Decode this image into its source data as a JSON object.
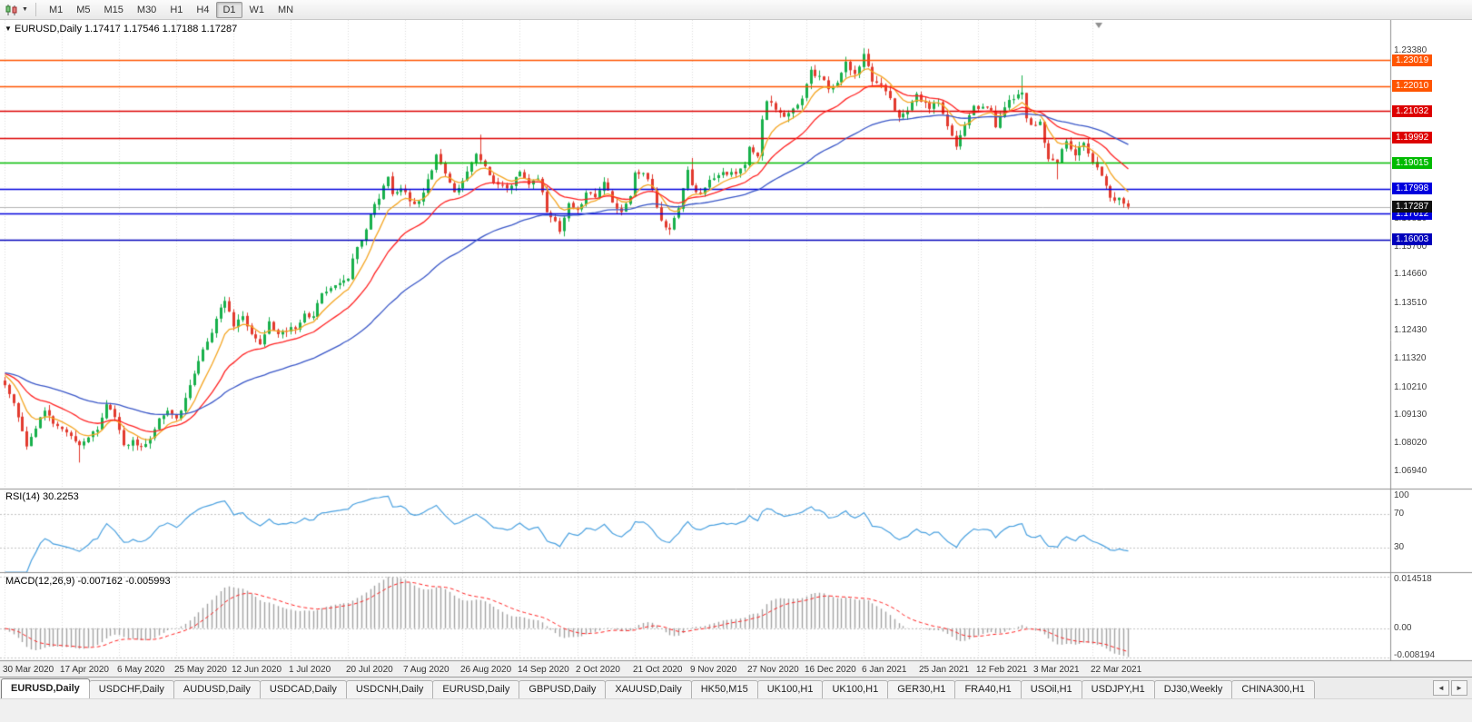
{
  "toolbar": {
    "dropdown_glyph": "▼",
    "timeframes": [
      {
        "label": "M1",
        "active": false
      },
      {
        "label": "M5",
        "active": false
      },
      {
        "label": "M15",
        "active": false
      },
      {
        "label": "M30",
        "active": false
      },
      {
        "label": "H1",
        "active": false
      },
      {
        "label": "H4",
        "active": false
      },
      {
        "label": "D1",
        "active": true
      },
      {
        "label": "W1",
        "active": false
      },
      {
        "label": "MN",
        "active": false
      }
    ]
  },
  "chart": {
    "title": "EURUSD,Daily 1.17417 1.17546 1.17188 1.17287"
  },
  "chart_data": {
    "type": "candlestick",
    "symbol": "EURUSD",
    "timeframe": "Daily",
    "ohlc": {
      "open": 1.17417,
      "high": 1.17546,
      "low": 1.17188,
      "close": 1.17287
    },
    "num_candles": 256,
    "candles_per_tick": 13,
    "x_tick_labels": [
      "30 Mar 2020",
      "17 Apr 2020",
      "6 May 2020",
      "25 May 2020",
      "12 Jun 2020",
      "1 Jul 2020",
      "20 Jul 2020",
      "7 Aug 2020",
      "26 Aug 2020",
      "14 Sep 2020",
      "2 Oct 2020",
      "21 Oct 2020",
      "9 Nov 2020",
      "27 Nov 2020",
      "16 Dec 2020",
      "6 Jan 2021",
      "25 Jan 2021",
      "12 Feb 2021",
      "3 Mar 2021",
      "22 Mar 2021"
    ],
    "price_range": {
      "min": 1.0625,
      "max": 1.246
    },
    "prehistory_price": 1.108,
    "price_scale_labels": [
      "1.23380",
      "1.16810",
      "1.15700",
      "1.14660",
      "1.13510",
      "1.12430",
      "1.11320",
      "1.10210",
      "1.09130",
      "1.08020",
      "1.06940"
    ],
    "close_anchors": [
      [
        0,
        1.103
      ],
      [
        2,
        1.096
      ],
      [
        5,
        1.079
      ],
      [
        7,
        1.086
      ],
      [
        9,
        1.093
      ],
      [
        12,
        1.087
      ],
      [
        14,
        1.0845
      ],
      [
        17,
        1.0795
      ],
      [
        19,
        1.0825
      ],
      [
        21,
        1.0855
      ],
      [
        23,
        1.0955
      ],
      [
        25,
        1.0905
      ],
      [
        27,
        1.0795
      ],
      [
        29,
        1.0815
      ],
      [
        31,
        1.079
      ],
      [
        33,
        1.082
      ],
      [
        35,
        1.09
      ],
      [
        37,
        1.093
      ],
      [
        39,
        1.09
      ],
      [
        41,
        1.098
      ],
      [
        43,
        1.1075
      ],
      [
        45,
        1.117
      ],
      [
        47,
        1.1235
      ],
      [
        48,
        1.129
      ],
      [
        50,
        1.136
      ],
      [
        52,
        1.126
      ],
      [
        54,
        1.13
      ],
      [
        56,
        1.123
      ],
      [
        58,
        1.119
      ],
      [
        60,
        1.128
      ],
      [
        62,
        1.123
      ],
      [
        64,
        1.124
      ],
      [
        66,
        1.125
      ],
      [
        68,
        1.131
      ],
      [
        70,
        1.13
      ],
      [
        72,
        1.139
      ],
      [
        74,
        1.141
      ],
      [
        76,
        1.143
      ],
      [
        78,
        1.1447
      ],
      [
        79,
        1.1526
      ],
      [
        81,
        1.1598
      ],
      [
        83,
        1.17
      ],
      [
        85,
        1.176
      ],
      [
        87,
        1.1846
      ],
      [
        88,
        1.1778
      ],
      [
        90,
        1.18
      ],
      [
        91,
        1.1786
      ],
      [
        93,
        1.1739
      ],
      [
        95,
        1.1784
      ],
      [
        97,
        1.1871
      ],
      [
        98,
        1.1933
      ],
      [
        100,
        1.1859
      ],
      [
        102,
        1.1786
      ],
      [
        104,
        1.183
      ],
      [
        106,
        1.1903
      ],
      [
        107,
        1.1936
      ],
      [
        108,
        1.1911
      ],
      [
        110,
        1.1852
      ],
      [
        112,
        1.1816
      ],
      [
        114,
        1.1801
      ],
      [
        116,
        1.1845
      ],
      [
        117,
        1.1866
      ],
      [
        119,
        1.1816
      ],
      [
        121,
        1.1839
      ],
      [
        123,
        1.1707
      ],
      [
        125,
        1.1672
      ],
      [
        126,
        1.1631
      ],
      [
        128,
        1.1742
      ],
      [
        130,
        1.1716
      ],
      [
        132,
        1.1784
      ],
      [
        134,
        1.1766
      ],
      [
        136,
        1.1826
      ],
      [
        138,
        1.1745
      ],
      [
        140,
        1.1708
      ],
      [
        142,
        1.177
      ],
      [
        143,
        1.1862
      ],
      [
        145,
        1.186
      ],
      [
        147,
        1.1795
      ],
      [
        149,
        1.1675
      ],
      [
        151,
        1.164
      ],
      [
        153,
        1.1723
      ],
      [
        155,
        1.1873
      ],
      [
        156,
        1.1813
      ],
      [
        158,
        1.1779
      ],
      [
        160,
        1.1834
      ],
      [
        162,
        1.1852
      ],
      [
        164,
        1.1854
      ],
      [
        166,
        1.1857
      ],
      [
        168,
        1.1893
      ],
      [
        169,
        1.1963
      ],
      [
        171,
        1.1926
      ],
      [
        172,
        1.2071
      ],
      [
        173,
        1.2142
      ],
      [
        175,
        1.2109
      ],
      [
        177,
        1.2081
      ],
      [
        179,
        1.2113
      ],
      [
        181,
        1.2152
      ],
      [
        183,
        1.2265
      ],
      [
        185,
        1.2241
      ],
      [
        187,
        1.2189
      ],
      [
        189,
        1.2214
      ],
      [
        191,
        1.2297
      ],
      [
        193,
        1.2249
      ],
      [
        195,
        1.2327
      ],
      [
        197,
        1.2219
      ],
      [
        199,
        1.2207
      ],
      [
        201,
        1.2154
      ],
      [
        203,
        1.2078
      ],
      [
        205,
        1.2105
      ],
      [
        207,
        1.2171
      ],
      [
        208,
        1.214
      ],
      [
        210,
        1.2112
      ],
      [
        212,
        1.2136
      ],
      [
        214,
        1.2044
      ],
      [
        216,
        1.1964
      ],
      [
        218,
        1.205
      ],
      [
        220,
        1.2124
      ],
      [
        222,
        1.212
      ],
      [
        224,
        1.2106
      ],
      [
        225,
        1.204
      ],
      [
        227,
        1.2118
      ],
      [
        229,
        1.215
      ],
      [
        231,
        1.2176
      ],
      [
        232,
        1.2075
      ],
      [
        233,
        1.2049
      ],
      [
        235,
        1.2062
      ],
      [
        237,
        1.1915
      ],
      [
        239,
        1.1899
      ],
      [
        241,
        1.1985
      ],
      [
        243,
        1.193
      ],
      [
        245,
        1.1979
      ],
      [
        247,
        1.1902
      ],
      [
        249,
        1.185
      ],
      [
        251,
        1.1764
      ],
      [
        253,
        1.1764
      ],
      [
        255,
        1.1729
      ]
    ],
    "wick_overrides": [
      {
        "i": 17,
        "low": 1.0727
      },
      {
        "i": 108,
        "high": 1.2011
      },
      {
        "i": 156,
        "high": 1.192
      },
      {
        "i": 195,
        "high": 1.2349
      },
      {
        "i": 231,
        "high": 1.2243
      },
      {
        "i": 239,
        "low": 1.1836
      }
    ],
    "last_candle": {
      "open": 1.17417,
      "high": 1.17546,
      "low": 1.17188,
      "close": 1.17287
    },
    "horizontal_lines": [
      {
        "price": 1.23019,
        "label": "1.23019",
        "color": "#ff5500"
      },
      {
        "price": 1.2201,
        "label": "1.22010",
        "color": "#ff5500"
      },
      {
        "price": 1.21032,
        "label": "1.21032",
        "color": "#dd0000"
      },
      {
        "price": 1.19992,
        "label": "1.19992",
        "color": "#dd0000"
      },
      {
        "price": 1.19015,
        "label": "1.19015",
        "color": "#00bb00"
      },
      {
        "price": 1.17998,
        "label": "1.17998",
        "color": "#0000dd"
      },
      {
        "price": 1.17012,
        "label": "1.17012",
        "color": "#0000dd"
      },
      {
        "price": 1.16003,
        "label": "1.16003",
        "color": "#0000bb"
      }
    ],
    "current_price": {
      "price": 1.17287,
      "label": "1.17287",
      "line_color": "#b4b4b4",
      "box_color": "#111111"
    },
    "candle_colors": {
      "up": "#18b04b",
      "down": "#e23a2e"
    },
    "moving_averages": [
      {
        "name": "fast",
        "period": 8,
        "color": "#f5a623"
      },
      {
        "name": "medium",
        "period": 21,
        "color": "#ff2222"
      },
      {
        "name": "slow",
        "period": 55,
        "color": "#3a57c8"
      }
    ],
    "rsi": {
      "title": "RSI(14) 30.2253",
      "period": 14,
      "current": 30.2253,
      "levels": [
        100,
        70,
        30
      ],
      "line_color": "#4aa1e0"
    },
    "macd": {
      "title": "MACD(12,26,9) -0.007162 -0.005993",
      "fast": 12,
      "slow": 26,
      "signal": 9,
      "current_macd": -0.007162,
      "current_signal": -0.005993,
      "scale_labels": [
        "0.014518",
        "0.00",
        "-0.008194"
      ],
      "range": {
        "min": -0.009,
        "max": 0.0155
      },
      "hist_color": "#a3a3a3",
      "signal_color": "#ff2222"
    }
  },
  "tabs": {
    "active_index": 0,
    "scroll_left_icon": "◄",
    "scroll_right_icon": "►",
    "items": [
      "EURUSD,Daily",
      "USDCHF,Daily",
      "AUDUSD,Daily",
      "USDCAD,Daily",
      "USDCNH,Daily",
      "EURUSD,Daily",
      "GBPUSD,Daily",
      "XAUUSD,Daily",
      "HK50,M15",
      "UK100,H1",
      "UK100,H1",
      "GER30,H1",
      "FRA40,H1",
      "USOil,H1",
      "USDJPY,H1",
      "DJ30,Weekly",
      "CHINA300,H1"
    ]
  }
}
